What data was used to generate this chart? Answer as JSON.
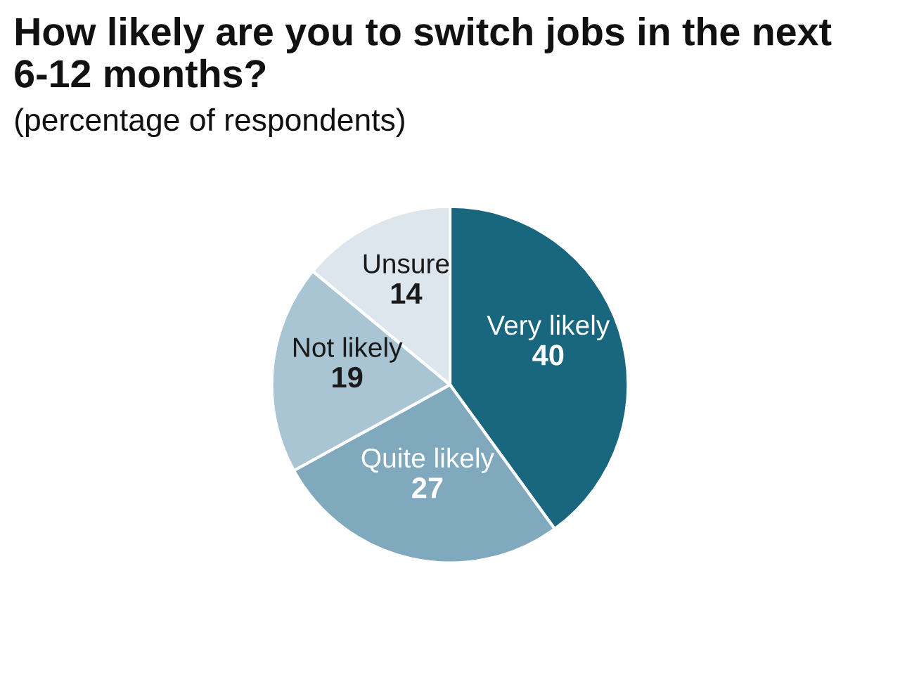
{
  "chart_data": {
    "type": "pie",
    "title": "How likely are you to switch jobs in the next 6-12 months?",
    "subtitle": "(percentage of respondents)",
    "categories": [
      "Very likely",
      "Quite likely",
      "Not likely",
      "Unsure"
    ],
    "values": [
      40,
      27,
      19,
      14
    ],
    "colors": [
      "#19667f",
      "#80a9bd",
      "#a9c4d3",
      "#dde6ed"
    ],
    "data_labels": true
  }
}
